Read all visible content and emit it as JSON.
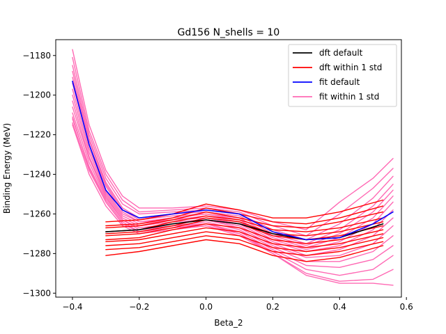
{
  "chart_data": {
    "type": "line",
    "title": "Gd156 N_shells = 10",
    "xlabel": "Beta_2",
    "ylabel": "Binding Energy (MeV)",
    "xlim": [
      -0.45,
      0.585
    ],
    "ylim": [
      -1302,
      -1172
    ],
    "xticks": [
      -0.4,
      -0.2,
      0.0,
      0.2,
      0.4,
      0.6
    ],
    "xtick_labels": [
      "−0.4",
      "−0.2",
      "0.0",
      "0.2",
      "0.4",
      "0.6"
    ],
    "yticks": [
      -1300,
      -1280,
      -1260,
      -1240,
      -1220,
      -1200,
      -1180
    ],
    "ytick_labels": [
      "−1300",
      "−1280",
      "−1260",
      "−1240",
      "−1220",
      "−1200",
      "−1180"
    ],
    "grid": false,
    "legend_position": "top-right",
    "legend": [
      {
        "label": "dft default",
        "color": "#000000"
      },
      {
        "label": "dft within 1 std",
        "color": "#ff0000"
      },
      {
        "label": "fit default",
        "color": "#0000ff"
      },
      {
        "label": "fit within 1 std",
        "color": "#ff69b4"
      }
    ],
    "x_dft": [
      -0.3,
      -0.2,
      -0.1,
      0.0,
      0.1,
      0.2,
      0.3,
      0.4,
      0.53
    ],
    "x_fit": [
      -0.4,
      -0.35,
      -0.3,
      -0.25,
      -0.2,
      -0.1,
      0.0,
      0.1,
      0.2,
      0.3,
      0.4,
      0.5,
      0.56
    ],
    "series": [
      {
        "group": "fit within 1 std",
        "color": "#ff69b4",
        "x": "x_fit",
        "values": [
          -1177,
          -1215,
          -1238,
          -1251,
          -1257,
          -1257,
          -1256,
          -1258,
          -1264,
          -1268,
          -1254,
          -1242,
          -1232
        ]
      },
      {
        "group": "fit within 1 std",
        "color": "#ff69b4",
        "x": "x_fit",
        "values": [
          -1181,
          -1218,
          -1240,
          -1253,
          -1259,
          -1258,
          -1257,
          -1259,
          -1266,
          -1271,
          -1260,
          -1247,
          -1237
        ]
      },
      {
        "group": "fit within 1 std",
        "color": "#ff69b4",
        "x": "x_fit",
        "values": [
          -1185,
          -1220,
          -1242,
          -1255,
          -1260,
          -1259,
          -1258,
          -1260,
          -1268,
          -1273,
          -1265,
          -1252,
          -1241
        ]
      },
      {
        "group": "fit within 1 std",
        "color": "#ff69b4",
        "x": "x_fit",
        "values": [
          -1188,
          -1222,
          -1244,
          -1257,
          -1262,
          -1260,
          -1259,
          -1261,
          -1270,
          -1275,
          -1268,
          -1256,
          -1245
        ]
      },
      {
        "group": "fit within 1 std",
        "color": "#ff69b4",
        "x": "x_fit",
        "values": [
          -1191,
          -1223,
          -1245,
          -1258,
          -1263,
          -1261,
          -1260,
          -1262,
          -1271,
          -1276,
          -1270,
          -1259,
          -1248
        ]
      },
      {
        "group": "fit within 1 std",
        "color": "#ff69b4",
        "x": "x_fit",
        "values": [
          -1194,
          -1225,
          -1246,
          -1259,
          -1264,
          -1262,
          -1260,
          -1263,
          -1272,
          -1277,
          -1272,
          -1262,
          -1251
        ]
      },
      {
        "group": "fit within 1 std",
        "color": "#ff69b4",
        "x": "x_fit",
        "values": [
          -1197,
          -1227,
          -1248,
          -1260,
          -1264,
          -1263,
          -1261,
          -1264,
          -1273,
          -1278,
          -1274,
          -1265,
          -1254
        ]
      },
      {
        "group": "fit within 1 std",
        "color": "#ff69b4",
        "x": "x_fit",
        "values": [
          -1200,
          -1229,
          -1249,
          -1261,
          -1265,
          -1263,
          -1262,
          -1265,
          -1274,
          -1279,
          -1276,
          -1268,
          -1258
        ]
      },
      {
        "group": "fit within 1 std",
        "color": "#ff69b4",
        "x": "x_fit",
        "values": [
          -1203,
          -1231,
          -1250,
          -1262,
          -1266,
          -1264,
          -1263,
          -1266,
          -1275,
          -1281,
          -1278,
          -1271,
          -1262
        ]
      },
      {
        "group": "fit within 1 std",
        "color": "#ff69b4",
        "x": "x_fit",
        "values": [
          -1206,
          -1232,
          -1251,
          -1263,
          -1267,
          -1265,
          -1263,
          -1267,
          -1276,
          -1282,
          -1281,
          -1275,
          -1266
        ]
      },
      {
        "group": "fit within 1 std",
        "color": "#ff69b4",
        "x": "x_fit",
        "values": [
          -1209,
          -1234,
          -1252,
          -1263,
          -1268,
          -1266,
          -1264,
          -1268,
          -1277,
          -1284,
          -1284,
          -1279,
          -1271
        ]
      },
      {
        "group": "fit within 1 std",
        "color": "#ff69b4",
        "x": "x_fit",
        "values": [
          -1212,
          -1236,
          -1253,
          -1264,
          -1269,
          -1266,
          -1265,
          -1269,
          -1278,
          -1286,
          -1287,
          -1283,
          -1276
        ]
      },
      {
        "group": "fit within 1 std",
        "color": "#ff69b4",
        "x": "x_fit",
        "values": [
          -1214,
          -1238,
          -1254,
          -1265,
          -1269,
          -1267,
          -1265,
          -1270,
          -1279,
          -1288,
          -1291,
          -1288,
          -1281
        ]
      },
      {
        "group": "fit within 1 std",
        "color": "#ff69b4",
        "x": "x_fit",
        "values": [
          -1215,
          -1240,
          -1256,
          -1266,
          -1270,
          -1268,
          -1266,
          -1271,
          -1280,
          -1290,
          -1294,
          -1293,
          -1288
        ]
      },
      {
        "group": "fit within 1 std",
        "color": "#ff69b4",
        "x": "x_fit",
        "values": [
          -1211,
          -1237,
          -1254,
          -1265,
          -1269,
          -1267,
          -1266,
          -1270,
          -1280,
          -1291,
          -1295,
          -1295,
          -1296
        ]
      },
      {
        "group": "dft within 1 std",
        "color": "#ff0000",
        "x": "x_dft",
        "values": [
          -1264,
          -1263,
          -1260,
          -1255,
          -1258,
          -1262,
          -1262,
          -1259,
          -1253
        ]
      },
      {
        "group": "dft within 1 std",
        "color": "#ff0000",
        "x": "x_dft",
        "values": [
          -1266,
          -1265,
          -1262,
          -1257,
          -1260,
          -1264,
          -1265,
          -1262,
          -1256
        ]
      },
      {
        "group": "dft within 1 std",
        "color": "#ff0000",
        "x": "x_dft",
        "values": [
          -1267,
          -1266,
          -1263,
          -1259,
          -1262,
          -1266,
          -1267,
          -1264,
          -1259
        ]
      },
      {
        "group": "dft within 1 std",
        "color": "#ff0000",
        "x": "x_dft",
        "values": [
          -1269,
          -1268,
          -1264,
          -1261,
          -1263,
          -1268,
          -1269,
          -1267,
          -1262
        ]
      },
      {
        "group": "dft within 1 std",
        "color": "#ff0000",
        "x": "x_dft",
        "values": [
          -1270,
          -1269,
          -1266,
          -1262,
          -1264,
          -1270,
          -1271,
          -1269,
          -1264
        ]
      },
      {
        "group": "dft within 1 std",
        "color": "#ff0000",
        "x": "x_dft",
        "values": [
          -1271,
          -1270,
          -1267,
          -1263,
          -1265,
          -1271,
          -1273,
          -1271,
          -1266
        ]
      },
      {
        "group": "dft within 1 std",
        "color": "#ff0000",
        "x": "x_dft",
        "values": [
          -1273,
          -1272,
          -1268,
          -1265,
          -1267,
          -1273,
          -1275,
          -1273,
          -1268
        ]
      },
      {
        "group": "dft within 1 std",
        "color": "#ff0000",
        "x": "x_dft",
        "values": [
          -1274,
          -1273,
          -1270,
          -1267,
          -1269,
          -1275,
          -1277,
          -1275,
          -1270
        ]
      },
      {
        "group": "dft within 1 std",
        "color": "#ff0000",
        "x": "x_dft",
        "values": [
          -1276,
          -1275,
          -1272,
          -1269,
          -1271,
          -1277,
          -1279,
          -1277,
          -1272
        ]
      },
      {
        "group": "dft within 1 std",
        "color": "#ff0000",
        "x": "x_dft",
        "values": [
          -1278,
          -1277,
          -1274,
          -1271,
          -1273,
          -1279,
          -1281,
          -1279,
          -1274
        ]
      },
      {
        "group": "dft within 1 std",
        "color": "#ff0000",
        "x": "x_dft",
        "values": [
          -1281,
          -1279,
          -1276,
          -1273,
          -1275,
          -1281,
          -1284,
          -1282,
          -1276
        ]
      },
      {
        "group": "dft default",
        "color": "#000000",
        "x": "x_dft",
        "values": [
          -1269,
          -1268,
          -1265,
          -1263,
          -1265,
          -1270,
          -1273,
          -1272,
          -1265
        ]
      },
      {
        "group": "fit default",
        "color": "#0000ff",
        "x": "x_fit",
        "values": [
          -1193,
          -1225,
          -1248,
          -1258,
          -1262,
          -1260,
          -1258,
          -1260,
          -1269,
          -1273,
          -1272,
          -1265,
          -1259
        ]
      }
    ]
  }
}
